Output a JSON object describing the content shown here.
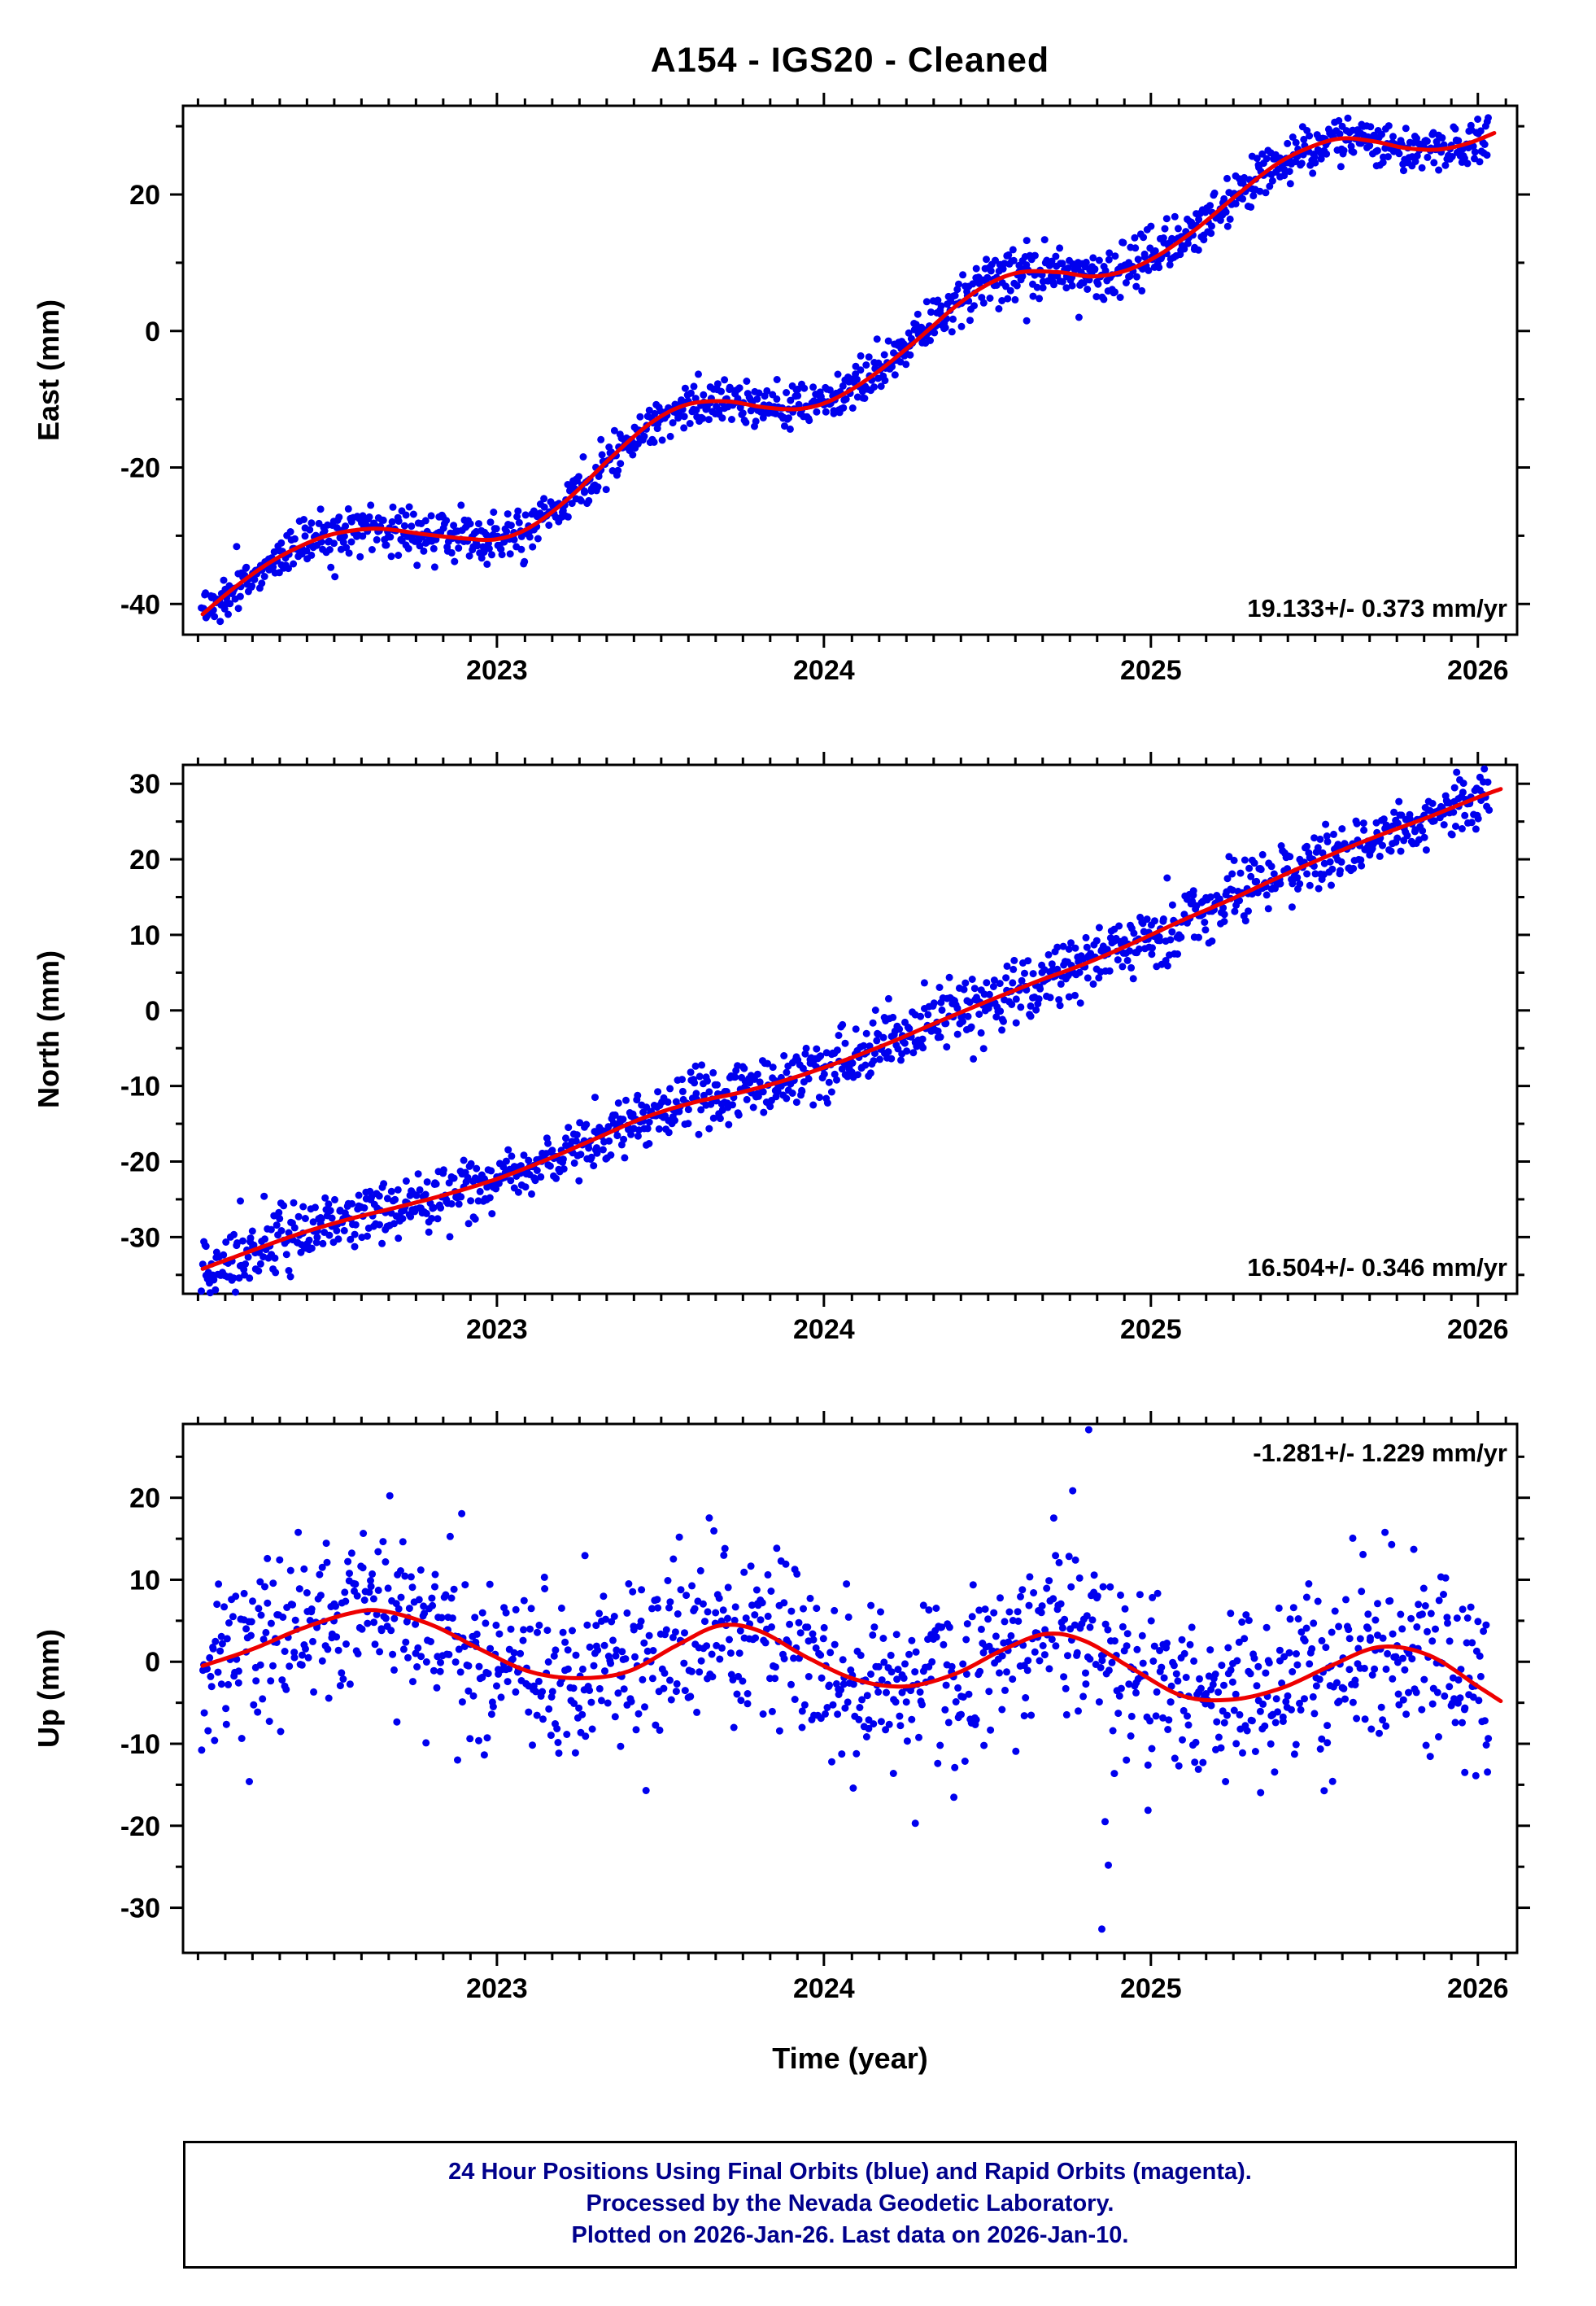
{
  "title": "A154  - IGS20 - Cleaned",
  "xlabel": "Time (year)",
  "footer": {
    "lines": [
      "24 Hour Positions Using Final Orbits (blue) and Rapid Orbits (magenta).",
      "Processed by the Nevada Geodetic Laboratory.",
      "Plotted on 2026-Jan-26. Last data on 2026-Jan-10."
    ],
    "text_color": "#00008b"
  },
  "colors": {
    "points": "#0000ee",
    "trend": "#ee0000",
    "axis": "#000000",
    "text": "#000000"
  },
  "chart_data": [
    {
      "type": "scatter",
      "name": "east",
      "ylabel": "East (mm)",
      "annotation": "19.133+/- 0.373 mm/yr",
      "annotation_corner": "bottom-right",
      "xlim": [
        2022.04,
        2026.12
      ],
      "ylim": [
        -44.5,
        33
      ],
      "xticks": [
        2023,
        2024,
        2025,
        2026
      ],
      "yticks": [
        -40,
        -20,
        0,
        20
      ],
      "yticks_minor": [
        -30,
        -10,
        10,
        30
      ],
      "x_minor_step": 0.08333,
      "marker_radius": 4.5,
      "points": {
        "n": 1250,
        "x_start": 2022.095,
        "x_end": 2026.035,
        "noise_mm": 1.8,
        "seed": 7
      },
      "outliers": [
        [
          2024.78,
          2.0
        ],
        [
          2024.62,
          1.5
        ]
      ],
      "trend_line": {
        "x": [
          2022.1,
          2022.2,
          2022.32,
          2022.45,
          2022.55,
          2022.65,
          2022.78,
          2022.9,
          2023.0,
          2023.1,
          2023.22,
          2023.35,
          2023.47,
          2023.58,
          2023.7,
          2023.82,
          2023.93,
          2024.03,
          2024.15,
          2024.28,
          2024.4,
          2024.5,
          2024.6,
          2024.72,
          2024.82,
          2024.92,
          2025.02,
          2025.14,
          2025.26,
          2025.38,
          2025.48,
          2025.58,
          2025.68,
          2025.78,
          2025.88,
          2025.97,
          2026.05
        ],
        "y": [
          -41.5,
          -37.5,
          -33.5,
          -30.5,
          -29.3,
          -29.0,
          -29.8,
          -30.4,
          -30.5,
          -28.8,
          -24.5,
          -18.5,
          -13.5,
          -10.8,
          -10.3,
          -11.2,
          -11.4,
          -10.0,
          -6.5,
          -1.5,
          3.5,
          6.8,
          8.6,
          8.6,
          8.0,
          8.8,
          11.0,
          15.0,
          19.8,
          24.3,
          26.8,
          28.2,
          27.8,
          26.8,
          26.6,
          27.5,
          29.0
        ]
      }
    },
    {
      "type": "scatter",
      "name": "north",
      "ylabel": "North (mm)",
      "annotation": "16.504+/- 0.346 mm/yr",
      "annotation_corner": "bottom-right",
      "xlim": [
        2022.04,
        2026.12
      ],
      "ylim": [
        -37.5,
        32.5
      ],
      "xticks": [
        2023,
        2024,
        2025,
        2026
      ],
      "yticks": [
        -30,
        -20,
        -10,
        0,
        10,
        20,
        30
      ],
      "yticks_minor": [
        -35,
        -25,
        -15,
        -5,
        5,
        15,
        25
      ],
      "x_minor_step": 0.08333,
      "marker_radius": 4.5,
      "points": {
        "n": 1250,
        "x_start": 2022.095,
        "x_end": 2026.035,
        "noise_mm": 2.0,
        "seed": 13
      },
      "outliers": [
        [
          2024.75,
          1.8
        ],
        [
          2023.3,
          -11.5
        ]
      ],
      "trend_line": {
        "x": [
          2022.1,
          2022.25,
          2022.4,
          2022.55,
          2022.7,
          2022.85,
          2023.0,
          2023.15,
          2023.3,
          2023.45,
          2023.6,
          2023.75,
          2023.9,
          2024.05,
          2024.2,
          2024.35,
          2024.5,
          2024.65,
          2024.8,
          2024.95,
          2025.1,
          2025.25,
          2025.4,
          2025.55,
          2025.7,
          2025.85,
          2026.0,
          2026.07
        ],
        "y": [
          -34.2,
          -31.8,
          -29.5,
          -27.6,
          -26.0,
          -24.3,
          -22.3,
          -19.8,
          -17.0,
          -14.2,
          -12.2,
          -10.8,
          -9.0,
          -6.8,
          -4.3,
          -1.5,
          1.2,
          3.8,
          6.2,
          9.0,
          12.0,
          14.8,
          17.8,
          20.6,
          23.2,
          25.6,
          28.2,
          29.3
        ]
      }
    },
    {
      "type": "scatter",
      "name": "up",
      "ylabel": "Up (mm)",
      "annotation": "-1.281+/- 1.229 mm/yr",
      "annotation_corner": "top-right",
      "xlim": [
        2022.04,
        2026.12
      ],
      "ylim": [
        -35.5,
        29
      ],
      "xticks": [
        2023,
        2024,
        2025,
        2026
      ],
      "yticks": [
        -30,
        -20,
        -10,
        0,
        10,
        20
      ],
      "yticks_minor": [
        -25,
        -15,
        -5,
        5,
        15,
        25
      ],
      "x_minor_step": 0.08333,
      "marker_radius": 4.5,
      "points": {
        "n": 1200,
        "x_start": 2022.095,
        "x_end": 2026.035,
        "noise_mm": 5.4,
        "seed": 42
      },
      "outliers": [
        [
          2024.81,
          28.3
        ],
        [
          2024.85,
          -32.6
        ],
        [
          2024.87,
          -24.8
        ],
        [
          2025.96,
          -13.5
        ],
        [
          2024.86,
          -19.5
        ]
      ],
      "trend_line": {
        "x": [
          2022.1,
          2022.25,
          2022.4,
          2022.55,
          2022.65,
          2022.8,
          2022.95,
          2023.1,
          2023.25,
          2023.4,
          2023.55,
          2023.68,
          2023.8,
          2023.95,
          2024.1,
          2024.25,
          2024.4,
          2024.55,
          2024.68,
          2024.8,
          2024.95,
          2025.1,
          2025.25,
          2025.4,
          2025.55,
          2025.7,
          2025.85,
          2026.0,
          2026.07
        ],
        "y": [
          -0.5,
          1.5,
          4.0,
          5.9,
          6.2,
          4.5,
          1.5,
          -1.2,
          -2.0,
          -1.2,
          2.0,
          4.4,
          3.8,
          0.5,
          -2.2,
          -3.0,
          -1.5,
          1.5,
          3.4,
          2.5,
          -1.0,
          -4.2,
          -4.6,
          -3.2,
          -0.5,
          1.8,
          0.8,
          -3.0,
          -4.8
        ]
      }
    }
  ]
}
